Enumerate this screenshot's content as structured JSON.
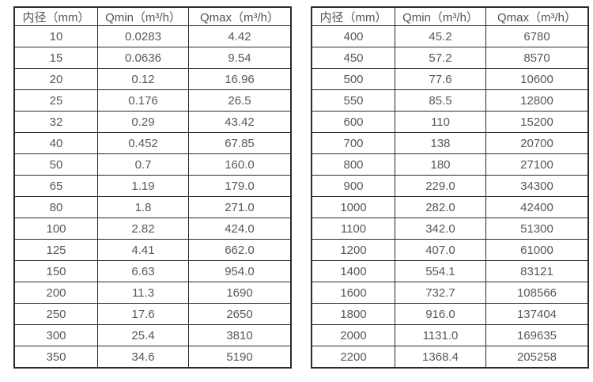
{
  "colors": {
    "border": "#2b2b2b",
    "header_text": "#545454",
    "cell_text": "#585858",
    "background": "#ffffff"
  },
  "tables": [
    {
      "name": "flow-spec-small-diameters",
      "headers": [
        "内径（mm）",
        "Qmin（m³/h）",
        "Qmax（m³/h）"
      ],
      "rows": [
        [
          "10",
          "0.0283",
          "4.42"
        ],
        [
          "15",
          "0.0636",
          "9.54"
        ],
        [
          "20",
          "0.12",
          "16.96"
        ],
        [
          "25",
          "0.176",
          "26.5"
        ],
        [
          "32",
          "0.29",
          "43.42"
        ],
        [
          "40",
          "0.452",
          "67.85"
        ],
        [
          "50",
          "0.7",
          "160.0"
        ],
        [
          "65",
          "1.19",
          "179.0"
        ],
        [
          "80",
          "1.8",
          "271.0"
        ],
        [
          "100",
          "2.82",
          "424.0"
        ],
        [
          "125",
          "4.41",
          "662.0"
        ],
        [
          "150",
          "6.63",
          "954.0"
        ],
        [
          "200",
          "11.3",
          "1690"
        ],
        [
          "250",
          "17.6",
          "2650"
        ],
        [
          "300",
          "25.4",
          "3810"
        ],
        [
          "350",
          "34.6",
          "5190"
        ]
      ]
    },
    {
      "name": "flow-spec-large-diameters",
      "headers": [
        "内径（mm）",
        "Qmin（m³/h）",
        "Qmax（m³/h）"
      ],
      "rows": [
        [
          "400",
          "45.2",
          "6780"
        ],
        [
          "450",
          "57.2",
          "8570"
        ],
        [
          "500",
          "77.6",
          "10600"
        ],
        [
          "550",
          "85.5",
          "12800"
        ],
        [
          "600",
          "110",
          "15200"
        ],
        [
          "700",
          "138",
          "20700"
        ],
        [
          "800",
          "180",
          "27100"
        ],
        [
          "900",
          "229.0",
          "34300"
        ],
        [
          "1000",
          "282.0",
          "42400"
        ],
        [
          "1100",
          "342.0",
          "51300"
        ],
        [
          "1200",
          "407.0",
          "61000"
        ],
        [
          "1400",
          "554.1",
          "83121"
        ],
        [
          "1600",
          "732.7",
          "108566"
        ],
        [
          "1800",
          "916.0",
          "137404"
        ],
        [
          "2000",
          "1131.0",
          "169635"
        ],
        [
          "2200",
          "1368.4",
          "205258"
        ]
      ]
    }
  ]
}
